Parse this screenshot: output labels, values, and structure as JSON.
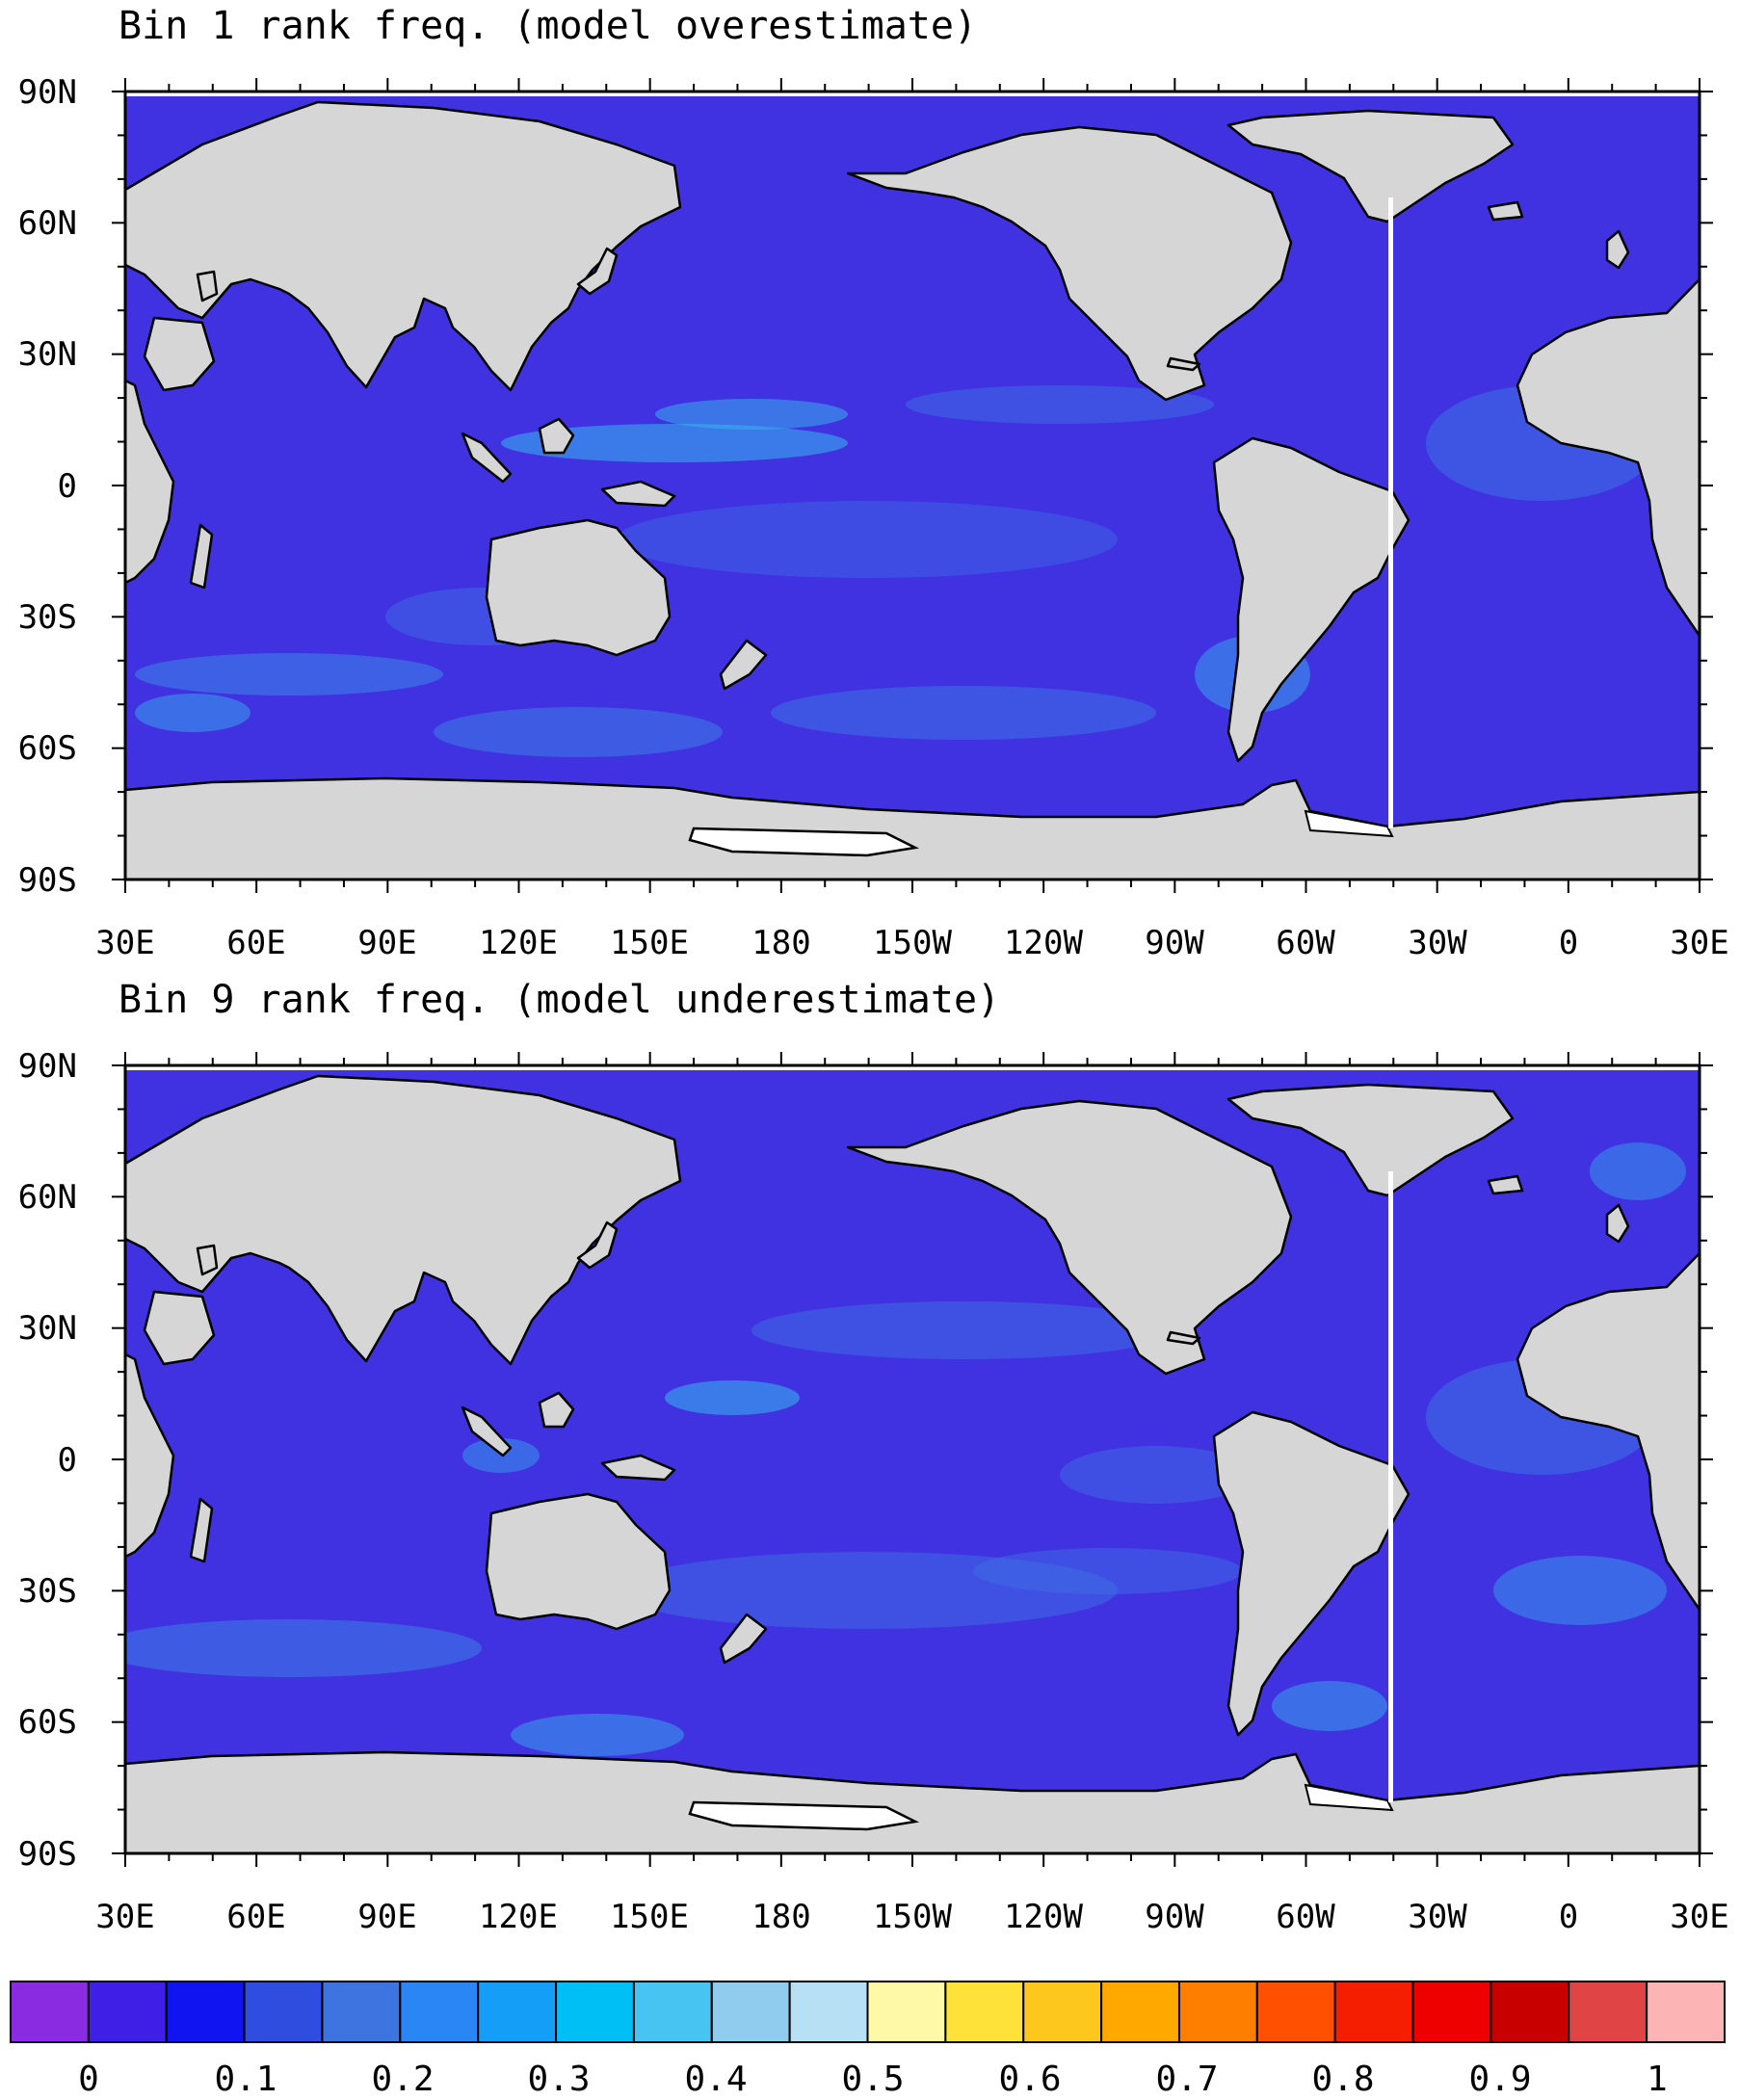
{
  "panels": [
    {
      "title": "Bin 1 rank freq. (model overestimate)",
      "lat_labels": [
        "90N",
        "60N",
        "30N",
        "0",
        "30S",
        "60S",
        "90S"
      ],
      "lon_labels": [
        "30E",
        "60E",
        "90E",
        "120E",
        "150E",
        "180",
        "150W",
        "120W",
        "90W",
        "60W",
        "30W",
        "0",
        "30E"
      ]
    },
    {
      "title": "Bin 9 rank freq. (model underestimate)",
      "lat_labels": [
        "90N",
        "60N",
        "30N",
        "0",
        "30S",
        "60S",
        "90S"
      ],
      "lon_labels": [
        "30E",
        "60E",
        "90E",
        "120E",
        "150E",
        "180",
        "150W",
        "120W",
        "90W",
        "60W",
        "30W",
        "0",
        "30E"
      ]
    }
  ],
  "colorbar": {
    "labels": [
      "0",
      "0.1",
      "0.2",
      "0.3",
      "0.4",
      "0.5",
      "0.6",
      "0.7",
      "0.8",
      "0.9",
      "1"
    ],
    "colors": [
      "#8a2be2",
      "#3f1fe6",
      "#0f14f0",
      "#2f4ee0",
      "#3d74e0",
      "#2a86f5",
      "#149ef7",
      "#00bff5",
      "#48c4f2",
      "#90ccee",
      "#b8e0f5",
      "#fef9a6",
      "#fee23a",
      "#fec71e",
      "#fea800",
      "#fe7e00",
      "#fe5000",
      "#f51e00",
      "#ee0000",
      "#c80000",
      "#e04444",
      "#fcb4b4"
    ]
  },
  "colors": {
    "land": "#d6d6d6",
    "ocean_base": "#4032e0",
    "ocean_light": "#3d6ce6",
    "ocean_bright": "#35b8f0",
    "ice_shelf": "#ffffff"
  }
}
